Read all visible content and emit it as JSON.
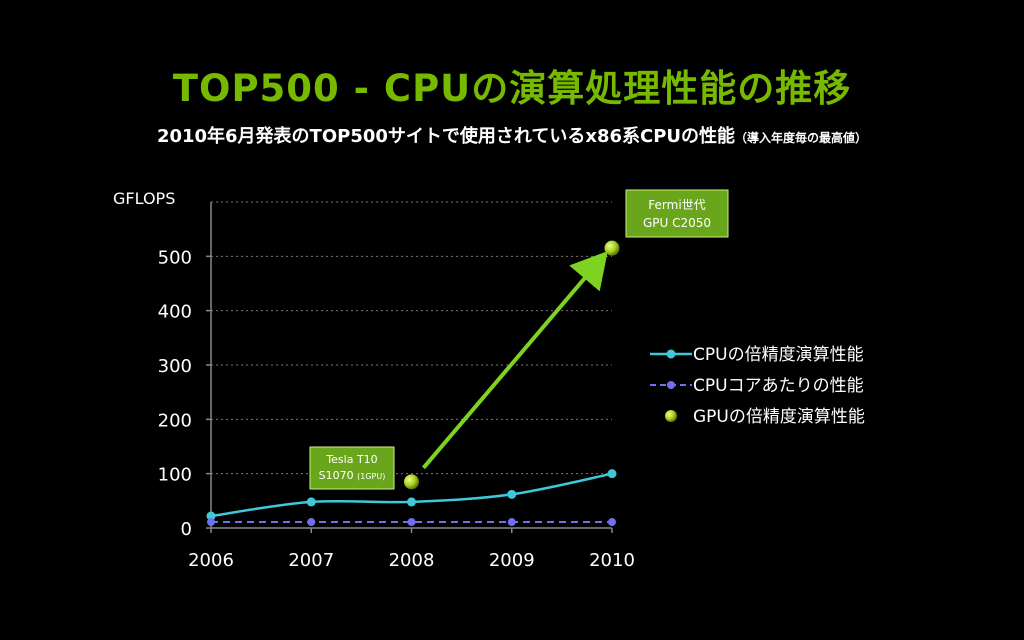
{
  "title": "TOP500 - CPUの演算処理性能の推移",
  "subtitle": "2010年6月発表のTOP500サイトで使用されているx86系CPUの性能",
  "subtitle_note": "（導入年度毎の最高値）",
  "colors": {
    "background": "#000000",
    "title": "#76b900",
    "cpu_series": "#3ec8d8",
    "core_series": "#6f6ff0",
    "gpu_series": "#b8e030",
    "arrow": "#7ed321",
    "callout_bg": "#6aa61c"
  },
  "chart_data": {
    "type": "line",
    "ylabel": "GFLOPS",
    "x": [
      2006,
      2007,
      2008,
      2009,
      2010
    ],
    "y_ticks": [
      0,
      100,
      200,
      300,
      400,
      500
    ],
    "ylim": [
      0,
      600
    ],
    "grid": true,
    "legend_position": "right",
    "series": [
      {
        "name": "CPUの倍精度演算性能",
        "style": "solid-line-markers",
        "values": [
          22,
          48,
          48,
          62,
          100
        ]
      },
      {
        "name": "CPUコアあたりの性能",
        "style": "dashed-line-markers",
        "values": [
          11,
          11,
          11,
          11,
          11
        ]
      },
      {
        "name": "GPUの倍精度演算性能",
        "style": "markers-only",
        "points": [
          {
            "x": 2008,
            "y": 85
          },
          {
            "x": 2010,
            "y": 515
          }
        ]
      }
    ],
    "annotations": [
      {
        "lines": [
          "Tesla T10",
          "S1070 (1GPU)"
        ],
        "x": 2008,
        "y": 85
      },
      {
        "lines": [
          "Fermi世代",
          "GPU C2050"
        ],
        "x": 2010,
        "y": 515
      }
    ]
  }
}
